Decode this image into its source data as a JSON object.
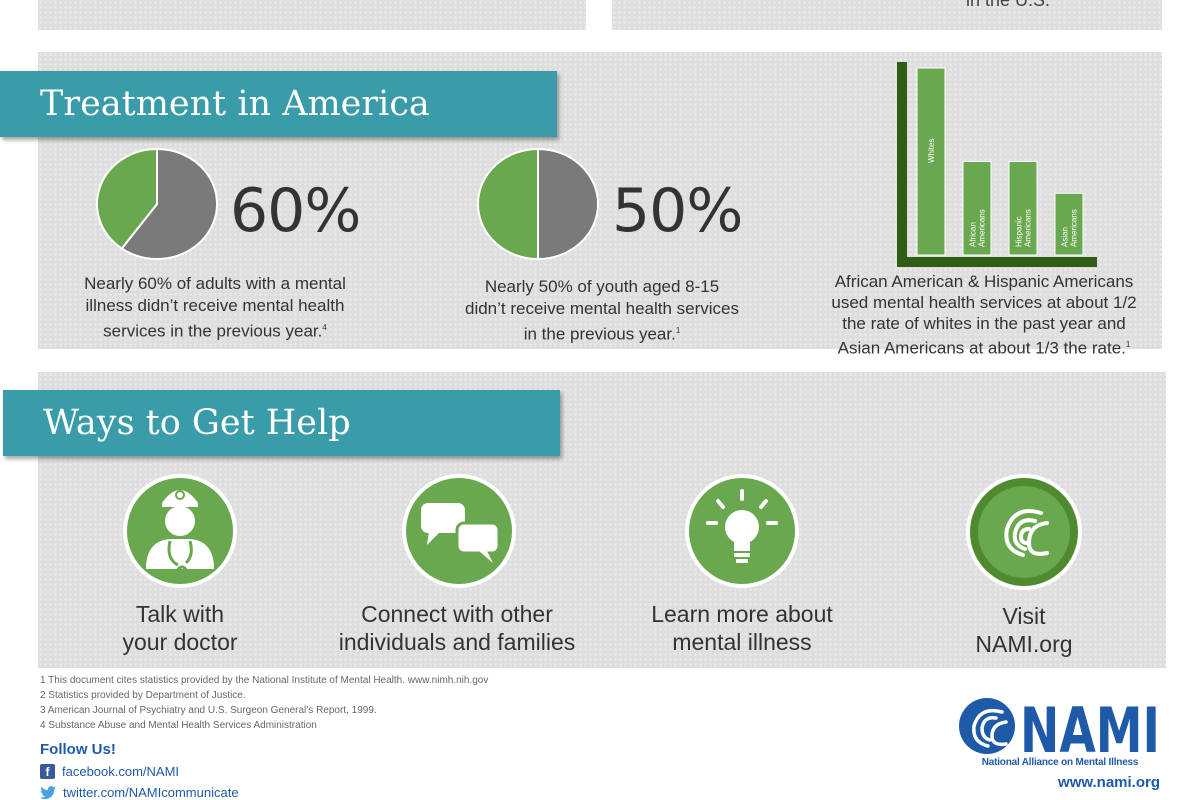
{
  "top": {
    "right_text": "in the U.S."
  },
  "treatment": {
    "heading": "Treatment in America",
    "stat1": {
      "value": "60%",
      "caption_lines": [
        "Nearly 60% of adults with a mental",
        "illness didn’t receive mental health",
        "services in the previous year."
      ],
      "footnote_mark": "4"
    },
    "stat2": {
      "value": "50%",
      "caption_lines": [
        "Nearly 50% of youth aged 8-15",
        "didn’t receive mental health services",
        "in the previous year."
      ],
      "footnote_mark": "1"
    },
    "stat3": {
      "caption_lines": [
        "African American & Hispanic Americans",
        "used mental health services at about 1/2",
        "the rate of whites in the past year and",
        "Asian Americans at about 1/3 the rate."
      ],
      "footnote_mark": "1"
    }
  },
  "chart_data": [
    {
      "type": "pie",
      "labels": [
        "did not receive services",
        "received services"
      ],
      "values": [
        60,
        40
      ],
      "title": "60%"
    },
    {
      "type": "pie",
      "labels": [
        "did not receive services",
        "received services"
      ],
      "values": [
        50,
        50
      ],
      "title": "50%"
    },
    {
      "type": "bar",
      "categories": [
        "Whites",
        "African Americans",
        "Hispanic Americans",
        "Asian Americans"
      ],
      "values": [
        1,
        0.5,
        0.5,
        0.33
      ],
      "ylim": [
        0,
        1
      ]
    }
  ],
  "help": {
    "heading": "Ways to Get Help",
    "items": [
      {
        "icon": "doctor-icon",
        "line1": "Talk with",
        "line2": "your doctor"
      },
      {
        "icon": "speech-bubbles-icon",
        "line1": "Connect with other",
        "line2": "individuals and families"
      },
      {
        "icon": "lightbulb-icon",
        "line1": "Learn more about",
        "line2": "mental illness"
      },
      {
        "icon": "nami-swirl-icon",
        "line1": "Visit",
        "line2": "NAMI.org"
      }
    ]
  },
  "footnotes": [
    "1 This document cites statistics provided by the National Institute of Mental Health. www.nimh.nih.gov",
    "2 Statistics provided by Department of Justice.",
    "3 American Journal of Psychiatry and U.S. Surgeon General’s Report, 1999.",
    "4 Substance Abuse and Mental Health Services Administration"
  ],
  "follow": {
    "title": "Follow Us!",
    "facebook": "facebook.com/NAMI",
    "twitter": "twitter.com/NAMIcommunicate"
  },
  "logo": {
    "name": "NAMI",
    "subtitle": "National Alliance on Mental Illness",
    "url": "www.nami.org"
  },
  "colors": {
    "teal": "#3a9ba9",
    "green": "#6aa84f",
    "dark_green": "#2f5d16",
    "gray_pie": "#7a7a7a",
    "nami_blue": "#1f5aa8"
  }
}
